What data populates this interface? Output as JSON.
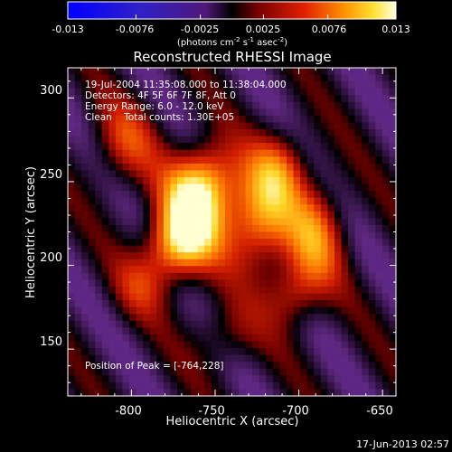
{
  "colorbar": {
    "min": -0.013,
    "max": 0.013,
    "tick_labels": [
      "-0.013",
      "-0.0076",
      "-0.0025",
      "0.0025",
      "0.0076",
      "0.013"
    ],
    "tick_values": [
      -0.013,
      -0.0076,
      -0.0025,
      0.0025,
      0.0076,
      0.013
    ],
    "units_main": "(photons cm",
    "units_exp1": "-2",
    "units_mid": " s",
    "units_exp2": "-1",
    "units_mid2": " asec",
    "units_exp3": "-2",
    "units_end": ")"
  },
  "chart_data": {
    "type": "heatmap",
    "title": "Reconstructed RHESSI Image",
    "xlabel": "Heliocentric X (arcsec)",
    "ylabel": "Heliocentric Y (arcsec)",
    "xlim": [
      -838,
      -642
    ],
    "ylim": [
      122,
      318
    ],
    "x_ticks": [
      -800,
      -750,
      -700,
      -650
    ],
    "x_tick_labels": [
      "-800",
      "-750",
      "-700",
      "-650"
    ],
    "y_ticks": [
      150,
      200,
      250,
      300
    ],
    "y_tick_labels": [
      "150",
      "200",
      "250",
      "300"
    ],
    "peak": [
      -764,
      228
    ],
    "info_lines": [
      "19-Jul-2004 11:35:08.000 to 11:38:04.000",
      "Detectors: 4F 5F 6F 7F 8F, Att 0",
      "Energy Range: 6.0 - 12.0 keV",
      "Clean    Total counts: 1.30E+05"
    ],
    "peak_label": "Position of Peak = [-764,228]",
    "timestamp": "17-Jun-2013 02:57"
  }
}
